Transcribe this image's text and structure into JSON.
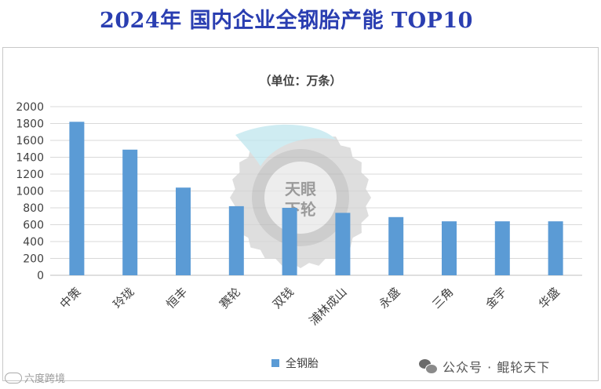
{
  "chart_data": {
    "type": "bar",
    "title": "2024年 国内企业全钢胎产能 TOP10",
    "subtitle": "（单位：万条）",
    "categories": [
      "中策",
      "玲珑",
      "恒丰",
      "赛轮",
      "双钱",
      "浦林成山",
      "永盛",
      "三角",
      "金宇",
      "华盛"
    ],
    "series": [
      {
        "name": "全钢胎",
        "values": [
          1820,
          1490,
          1040,
          820,
          800,
          740,
          690,
          640,
          640,
          640
        ],
        "color": "#5b9bd5"
      }
    ],
    "ylim": [
      0,
      2000
    ],
    "yticks": [
      "0",
      "200",
      "400",
      "600",
      "800",
      "1000",
      "1200",
      "1400",
      "1600",
      "1800",
      "2000"
    ],
    "grid": true,
    "legend_position": "bottom"
  },
  "watermark": {
    "text_top": "天眼",
    "text_bottom": "下轮"
  },
  "footer": {
    "wechat": "公众号 · 鲲轮天下",
    "corner": "六度跨境"
  }
}
